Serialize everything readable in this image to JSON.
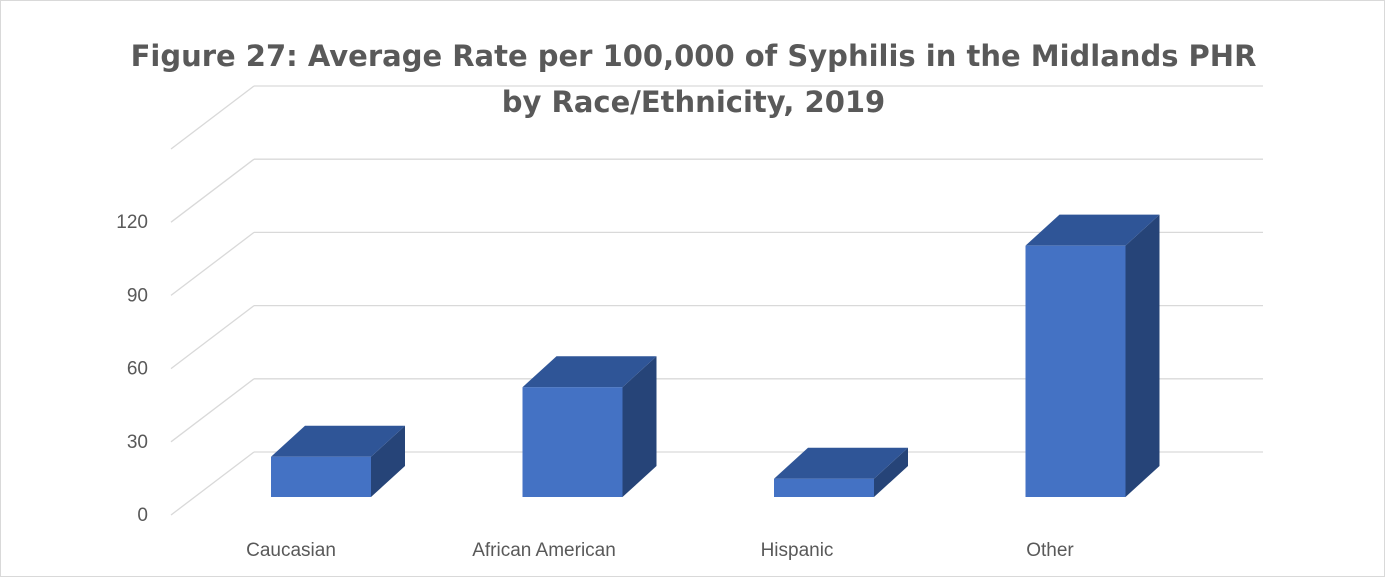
{
  "chart_data": {
    "type": "bar",
    "title_line1": "Figure 27: Average Rate per 100,000 of Syphilis in the Midlands PHR",
    "title_line2": "by Race/Ethnicity, 2019",
    "categories": [
      "Caucasian",
      "African American",
      "Hispanic",
      "Other"
    ],
    "values": [
      16.5,
      45,
      7.5,
      103
    ],
    "yticks": [
      0,
      30,
      60,
      90,
      120
    ],
    "ylim": [
      0,
      120
    ],
    "grid": true,
    "style": "3d-column",
    "colors": {
      "bar_front": "#4472C4",
      "bar_top": "#2F5597",
      "bar_side": "#264478",
      "grid": "#d9d9d9",
      "text": "#595959"
    }
  }
}
